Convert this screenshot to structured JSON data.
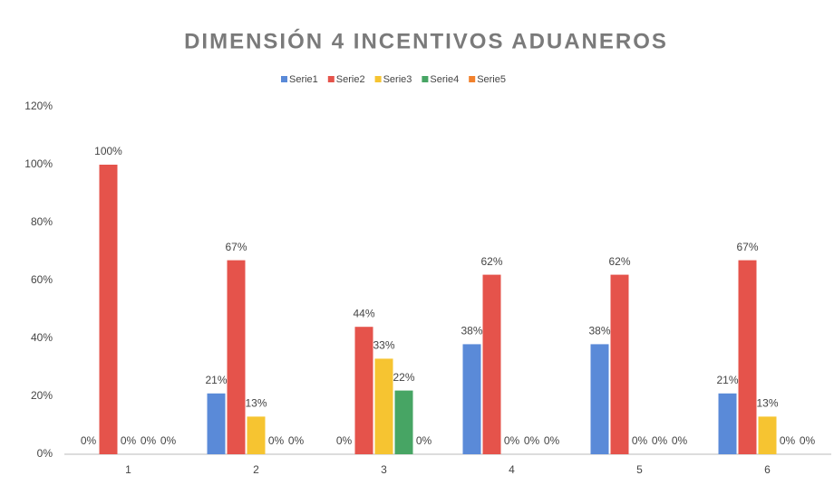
{
  "chart_data": {
    "type": "bar",
    "title": "DIMENSIÓN 4 INCENTIVOS ADUANEROS",
    "categories": [
      "1",
      "2",
      "3",
      "4",
      "5",
      "6"
    ],
    "series": [
      {
        "name": "Serie1",
        "color": "#5a8ad8",
        "values": [
          0,
          21,
          0,
          38,
          38,
          21
        ],
        "value_labels": [
          "0%",
          "21%",
          "0%",
          "38%",
          "38%",
          "21%"
        ]
      },
      {
        "name": "Serie2",
        "color": "#e5534b",
        "values": [
          100,
          67,
          44,
          62,
          62,
          67
        ],
        "value_labels": [
          "100%",
          "67%",
          "44%",
          "62%",
          "62%",
          "67%"
        ]
      },
      {
        "name": "Serie3",
        "color": "#f6c431",
        "values": [
          0,
          13,
          33,
          0,
          0,
          13
        ],
        "value_labels": [
          "0%",
          "13%",
          "33%",
          "0%",
          "0%",
          "13%"
        ]
      },
      {
        "name": "Serie4",
        "color": "#47a564",
        "values": [
          0,
          0,
          22,
          0,
          0,
          0
        ],
        "value_labels": [
          "0%",
          "0%",
          "22%",
          "0%",
          "0%",
          "0%"
        ]
      },
      {
        "name": "Serie5",
        "color": "#f2812c",
        "values": [
          0,
          0,
          0,
          0,
          0,
          0
        ],
        "value_labels": [
          "0%",
          "0%",
          "0%",
          "0%",
          "0%",
          "0%"
        ]
      }
    ],
    "ylim": [
      0,
      120
    ],
    "yticks": [
      {
        "value": 0,
        "label": "0%"
      },
      {
        "value": 20,
        "label": "20%"
      },
      {
        "value": 40,
        "label": "40%"
      },
      {
        "value": 60,
        "label": "60%"
      },
      {
        "value": 80,
        "label": "80%"
      },
      {
        "value": 100,
        "label": "100%"
      },
      {
        "value": 120,
        "label": "120%"
      }
    ],
    "grid": false,
    "legend": "top"
  }
}
